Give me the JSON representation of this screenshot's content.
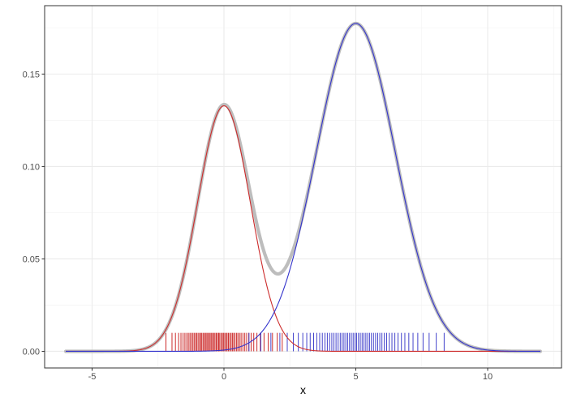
{
  "chart_data": {
    "type": "line",
    "title": "",
    "xlabel": "x",
    "ylabel": "",
    "xlim": [
      -6.8,
      12.8
    ],
    "ylim": [
      -0.009,
      0.187
    ],
    "x_ticks": [
      -5,
      0,
      5,
      10
    ],
    "x_tick_labels": [
      "-5",
      "0",
      "5",
      "10"
    ],
    "y_ticks": [
      0,
      0.05,
      0.1,
      0.15
    ],
    "y_tick_labels": [
      "0.00",
      "0.05",
      "0.10",
      "0.15"
    ],
    "grid": true,
    "curve_domain": [
      -6,
      12
    ],
    "series": [
      {
        "kind": "mixture-density",
        "color": "#bdbdbd",
        "components": [
          "red-component",
          "blue-component"
        ]
      },
      {
        "kind": "normal-density",
        "id": "red-component",
        "color": "#cc2b2b",
        "weight": 0.333,
        "mean": 0,
        "sd": 1
      },
      {
        "kind": "normal-density",
        "id": "blue-component",
        "color": "#3333cc",
        "weight": 0.667,
        "mean": 5,
        "sd": 1.5
      }
    ],
    "rug": [
      {
        "color": "#cc2b2b",
        "tick_height": 0.01,
        "values": [
          -2.2,
          -1.97,
          -1.84,
          -1.72,
          -1.63,
          -1.55,
          -1.48,
          -1.41,
          -1.35,
          -1.29,
          -1.24,
          -1.18,
          -1.13,
          -1.08,
          -1.03,
          -0.98,
          -0.93,
          -0.88,
          -0.84,
          -0.79,
          -0.74,
          -0.7,
          -0.65,
          -0.61,
          -0.56,
          -0.52,
          -0.47,
          -0.43,
          -0.38,
          -0.34,
          -0.29,
          -0.25,
          -0.2,
          -0.16,
          -0.11,
          -0.06,
          -0.02,
          0.03,
          0.08,
          0.12,
          0.17,
          0.22,
          0.27,
          0.32,
          0.37,
          0.42,
          0.48,
          0.53,
          0.59,
          0.65,
          0.72,
          0.79,
          0.86,
          0.94,
          1.03,
          1.13,
          1.25,
          1.38,
          1.52,
          1.68,
          1.84,
          2.02,
          2.21
        ]
      },
      {
        "color": "#4444cc",
        "tick_height": 0.01,
        "values": [
          0.95,
          1.4,
          1.78,
          2.12,
          2.4,
          2.63,
          2.82,
          2.99,
          3.14,
          3.27,
          3.4,
          3.52,
          3.63,
          3.73,
          3.83,
          3.92,
          4.01,
          4.09,
          4.17,
          4.25,
          4.33,
          4.41,
          4.48,
          4.55,
          4.62,
          4.69,
          4.76,
          4.83,
          4.9,
          4.97,
          5.03,
          5.1,
          5.17,
          5.24,
          5.31,
          5.38,
          5.45,
          5.52,
          5.59,
          5.67,
          5.75,
          5.83,
          5.91,
          5.99,
          6.08,
          6.17,
          6.27,
          6.37,
          6.48,
          6.6,
          6.73,
          6.86,
          7.01,
          7.17,
          7.35,
          7.55,
          7.78,
          8.05,
          8.35
        ]
      }
    ]
  }
}
